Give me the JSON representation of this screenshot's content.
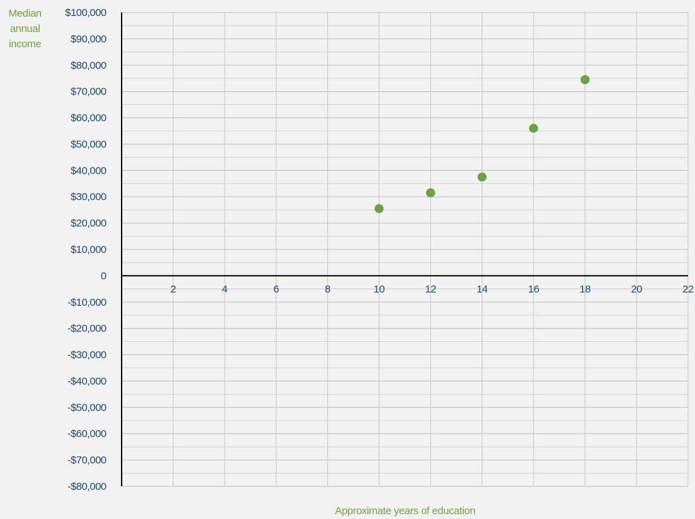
{
  "chart_data": {
    "type": "scatter",
    "xlabel": "Approximate years of education",
    "ylabel_lines": [
      "Median",
      "annual",
      "income"
    ],
    "xlim": [
      0,
      22
    ],
    "ylim": [
      -80000,
      100000
    ],
    "x_ticks": [
      2,
      4,
      6,
      8,
      10,
      12,
      14,
      16,
      18,
      20,
      22
    ],
    "y_ticks": [
      100000,
      90000,
      80000,
      70000,
      60000,
      50000,
      40000,
      30000,
      20000,
      10000,
      0,
      -10000,
      -20000,
      -30000,
      -40000,
      -50000,
      -60000,
      -70000,
      -80000
    ],
    "x_tick_labels": [
      "2",
      "4",
      "6",
      "8",
      "10",
      "12",
      "14",
      "16",
      "18",
      "20",
      "22"
    ],
    "y_tick_labels": [
      "$100,000",
      "$90,000",
      "$80,000",
      "$70,000",
      "$60,000",
      "$50,000",
      "$40,000",
      "$30,000",
      "$20,000",
      "$10,000",
      "0",
      "-$10,000",
      "-$20,000",
      "-$30,000",
      "-$40,000",
      "-$50,000",
      "-$60,000",
      "-$70,000",
      "-$80,000"
    ],
    "points": [
      {
        "x": 10,
        "y": 25500
      },
      {
        "x": 12,
        "y": 31500
      },
      {
        "x": 14,
        "y": 37500
      },
      {
        "x": 16,
        "y": 56000
      },
      {
        "x": 18,
        "y": 74500
      }
    ],
    "grid": true,
    "colors": {
      "point": "#6aa441",
      "axis": "#111111",
      "grid": "#c8c8c8",
      "tick_text": "#1b4a6b",
      "label_text": "#6aa441",
      "background": "#f2f2f2"
    }
  }
}
